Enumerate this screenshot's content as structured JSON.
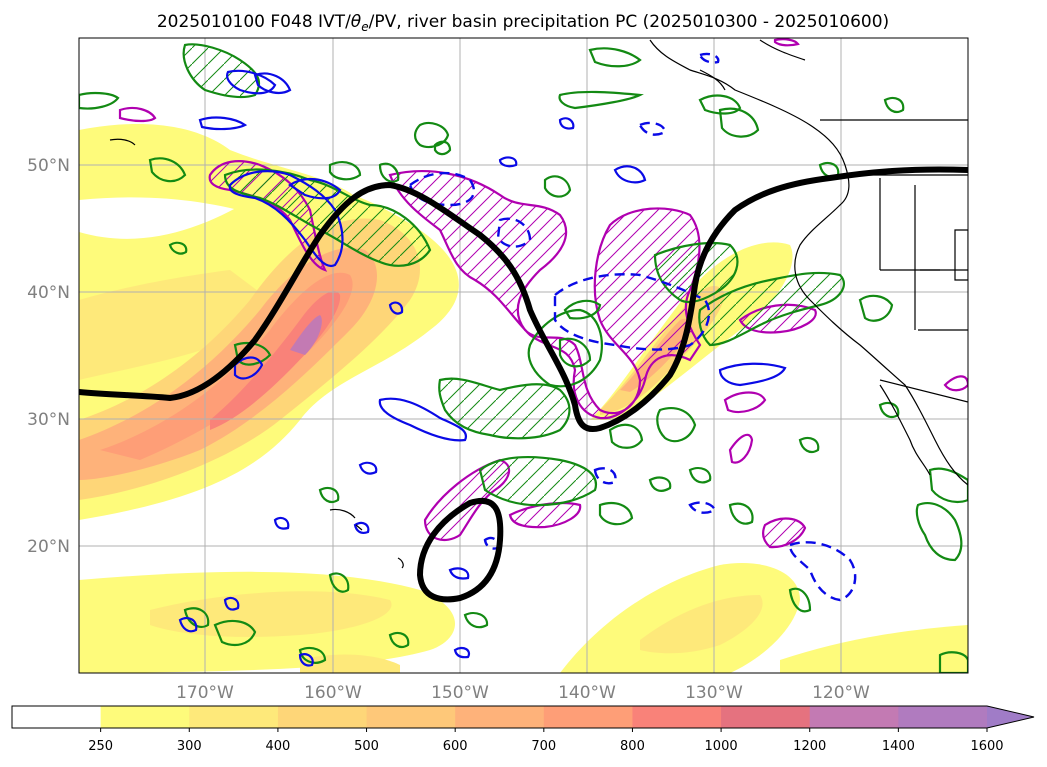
{
  "title": "2025010100 F048 IVT/θe/PV, river basin precipitation PC (2025010300 - 2025010600)",
  "map": {
    "projection": "PlateCarree",
    "lon_range": [
      -180,
      -110
    ],
    "lat_range": [
      10,
      60
    ],
    "lat_labels": [
      "50°N",
      "40°N",
      "30°N",
      "20°N"
    ],
    "lon_labels": [
      "170°W",
      "160°W",
      "150°W",
      "140°W",
      "130°W",
      "120°W"
    ],
    "layers": [
      "ivt-filled-contours",
      "theta-e-green-contours",
      "pv-magenta-contours-hatched",
      "blue-contours-solid-and-dashed",
      "black-thick-contour",
      "coastlines-and-borders"
    ]
  },
  "colorbar": {
    "tick_labels": [
      "250",
      "300",
      "400",
      "500",
      "600",
      "700",
      "800",
      "1000",
      "1200",
      "1400",
      "1600"
    ],
    "colors": [
      "#ffffff",
      "#fefb7b",
      "#fee97a",
      "#fed678",
      "#fec879",
      "#feb27a",
      "#fe9e77",
      "#f98279",
      "#e5727f",
      "#c37ab3",
      "#b07bbf",
      "#a07cc7"
    ],
    "extend": "max"
  }
}
